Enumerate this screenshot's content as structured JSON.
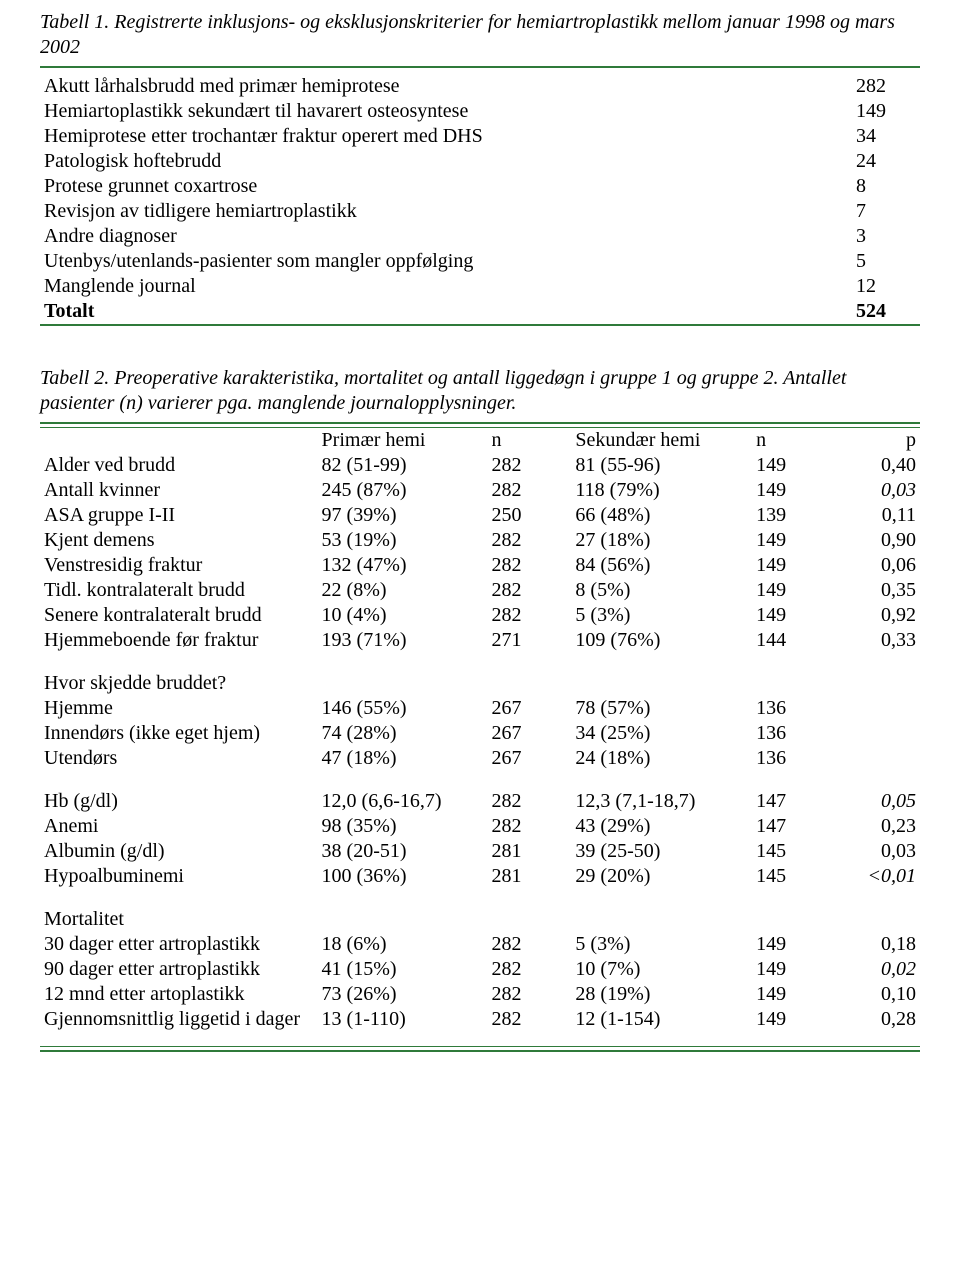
{
  "colors": {
    "rule_green": "#2f7a3a",
    "text": "#000000",
    "background": "#ffffff"
  },
  "typography": {
    "family": "Times New Roman",
    "body_size_pt": 15,
    "caption_style": "italic"
  },
  "table1": {
    "caption": "Tabell 1. Registrerte inklusjons- og eksklusjonskriterier for hemiartroplastikk mellom januar 1998 og mars 2002",
    "rows": [
      {
        "label": "Akutt lårhalsbrudd med primær hemiprotese",
        "value": "282"
      },
      {
        "label": "Hemiartoplastikk sekundært til havarert osteosyntese",
        "value": "149"
      },
      {
        "label": "Hemiprotese etter trochantær fraktur operert med DHS",
        "value": "34"
      },
      {
        "label": "Patologisk hoftebrudd",
        "value": "24"
      },
      {
        "label": "Protese grunnet coxartrose",
        "value": "8"
      },
      {
        "label": "Revisjon av tidligere hemiartroplastikk",
        "value": "7"
      },
      {
        "label": "Andre diagnoser",
        "value": "3"
      },
      {
        "label": "Utenbys/utenlands-pasienter som mangler oppfølging",
        "value": "5"
      },
      {
        "label": "Manglende journal",
        "value": "12"
      }
    ],
    "total_label": "Totalt",
    "total_value": "524"
  },
  "table2": {
    "caption": "Tabell 2. Preoperative karakteristika, mortalitet og antall liggedøgn i gruppe 1 og gruppe 2. Antallet pasienter (n) varierer pga. manglende journalopplysninger.",
    "headers": {
      "primary": "Primær hemi",
      "n1": "n",
      "secondary": "Sekundær hemi",
      "n2": "n",
      "p": "p"
    },
    "sections": [
      {
        "title": null,
        "rows": [
          {
            "label": "Alder ved brudd",
            "prim": "82 (51-99)",
            "n1": "282",
            "sec": "81 (55-96)",
            "n2": "149",
            "p": "0,40",
            "p_italic": false
          },
          {
            "label": "Antall kvinner",
            "prim": "245 (87%)",
            "n1": "282",
            "sec": "118 (79%)",
            "n2": "149",
            "p": "0,03",
            "p_italic": true
          },
          {
            "label": "ASA gruppe I-II",
            "prim": "97 (39%)",
            "n1": "250",
            "sec": "66 (48%)",
            "n2": "139",
            "p": "0,11",
            "p_italic": false
          },
          {
            "label": "Kjent demens",
            "prim": "53 (19%)",
            "n1": "282",
            "sec": "27 (18%)",
            "n2": "149",
            "p": "0,90",
            "p_italic": false
          },
          {
            "label": "Venstresidig fraktur",
            "prim": "132 (47%)",
            "n1": "282",
            "sec": "84 (56%)",
            "n2": "149",
            "p": "0,06",
            "p_italic": false
          },
          {
            "label": "Tidl. kontralateralt brudd",
            "prim": "22 (8%)",
            "n1": "282",
            "sec": "8 (5%)",
            "n2": "149",
            "p": "0,35",
            "p_italic": false
          },
          {
            "label": "Senere kontralateralt brudd",
            "prim": "10 (4%)",
            "n1": "282",
            "sec": "5 (3%)",
            "n2": "149",
            "p": "0,92",
            "p_italic": false
          },
          {
            "label": "Hjemmeboende før fraktur",
            "prim": "193 (71%)",
            "n1": "271",
            "sec": "109 (76%)",
            "n2": "144",
            "p": "0,33",
            "p_italic": false
          }
        ]
      },
      {
        "title": "Hvor skjedde bruddet?",
        "rows": [
          {
            "label": "Hjemme",
            "prim": "146 (55%)",
            "n1": "267",
            "sec": "78 (57%)",
            "n2": "136",
            "p": "",
            "p_italic": false
          },
          {
            "label": "Innendørs (ikke eget hjem)",
            "prim": "74 (28%)",
            "n1": "267",
            "sec": "34 (25%)",
            "n2": "136",
            "p": "",
            "p_italic": false
          },
          {
            "label": "Utendørs",
            "prim": "47 (18%)",
            "n1": "267",
            "sec": "24 (18%)",
            "n2": "136",
            "p": "",
            "p_italic": false
          }
        ]
      },
      {
        "title": null,
        "rows": [
          {
            "label": "Hb (g/dl)",
            "prim": "12,0 (6,6-16,7)",
            "n1": "282",
            "sec": "12,3 (7,1-18,7)",
            "n2": "147",
            "p": "0,05",
            "p_italic": true
          },
          {
            "label": "Anemi",
            "prim": "98 (35%)",
            "n1": "282",
            "sec": "43 (29%)",
            "n2": "147",
            "p": "0,23",
            "p_italic": false
          },
          {
            "label": "Albumin (g/dl)",
            "prim": "38 (20-51)",
            "n1": "281",
            "sec": "39 (25-50)",
            "n2": "145",
            "p": "0,03",
            "p_italic": false
          },
          {
            "label": "Hypoalbuminemi",
            "prim": "100 (36%)",
            "n1": "281",
            "sec": "29 (20%)",
            "n2": "145",
            "p": "<0,01",
            "p_italic": true
          }
        ]
      },
      {
        "title": "Mortalitet",
        "rows": [
          {
            "label": "30 dager etter artroplastikk",
            "prim": "18 (6%)",
            "n1": "282",
            "sec": "5 (3%)",
            "n2": "149",
            "p": "0,18",
            "p_italic": false
          },
          {
            "label": "90 dager etter artroplastikk",
            "prim": "41 (15%)",
            "n1": "282",
            "sec": "10 (7%)",
            "n2": "149",
            "p": "0,02",
            "p_italic": true
          },
          {
            "label": "12 mnd etter artoplastikk",
            "prim": "73 (26%)",
            "n1": "282",
            "sec": "28 (19%)",
            "n2": "149",
            "p": "0,10",
            "p_italic": false
          },
          {
            "label": "Gjennomsnittlig liggetid i dager",
            "prim": "13 (1-110)",
            "n1": "282",
            "sec": "12 (1-154)",
            "n2": "149",
            "p": "0,28",
            "p_italic": false
          }
        ]
      }
    ]
  }
}
